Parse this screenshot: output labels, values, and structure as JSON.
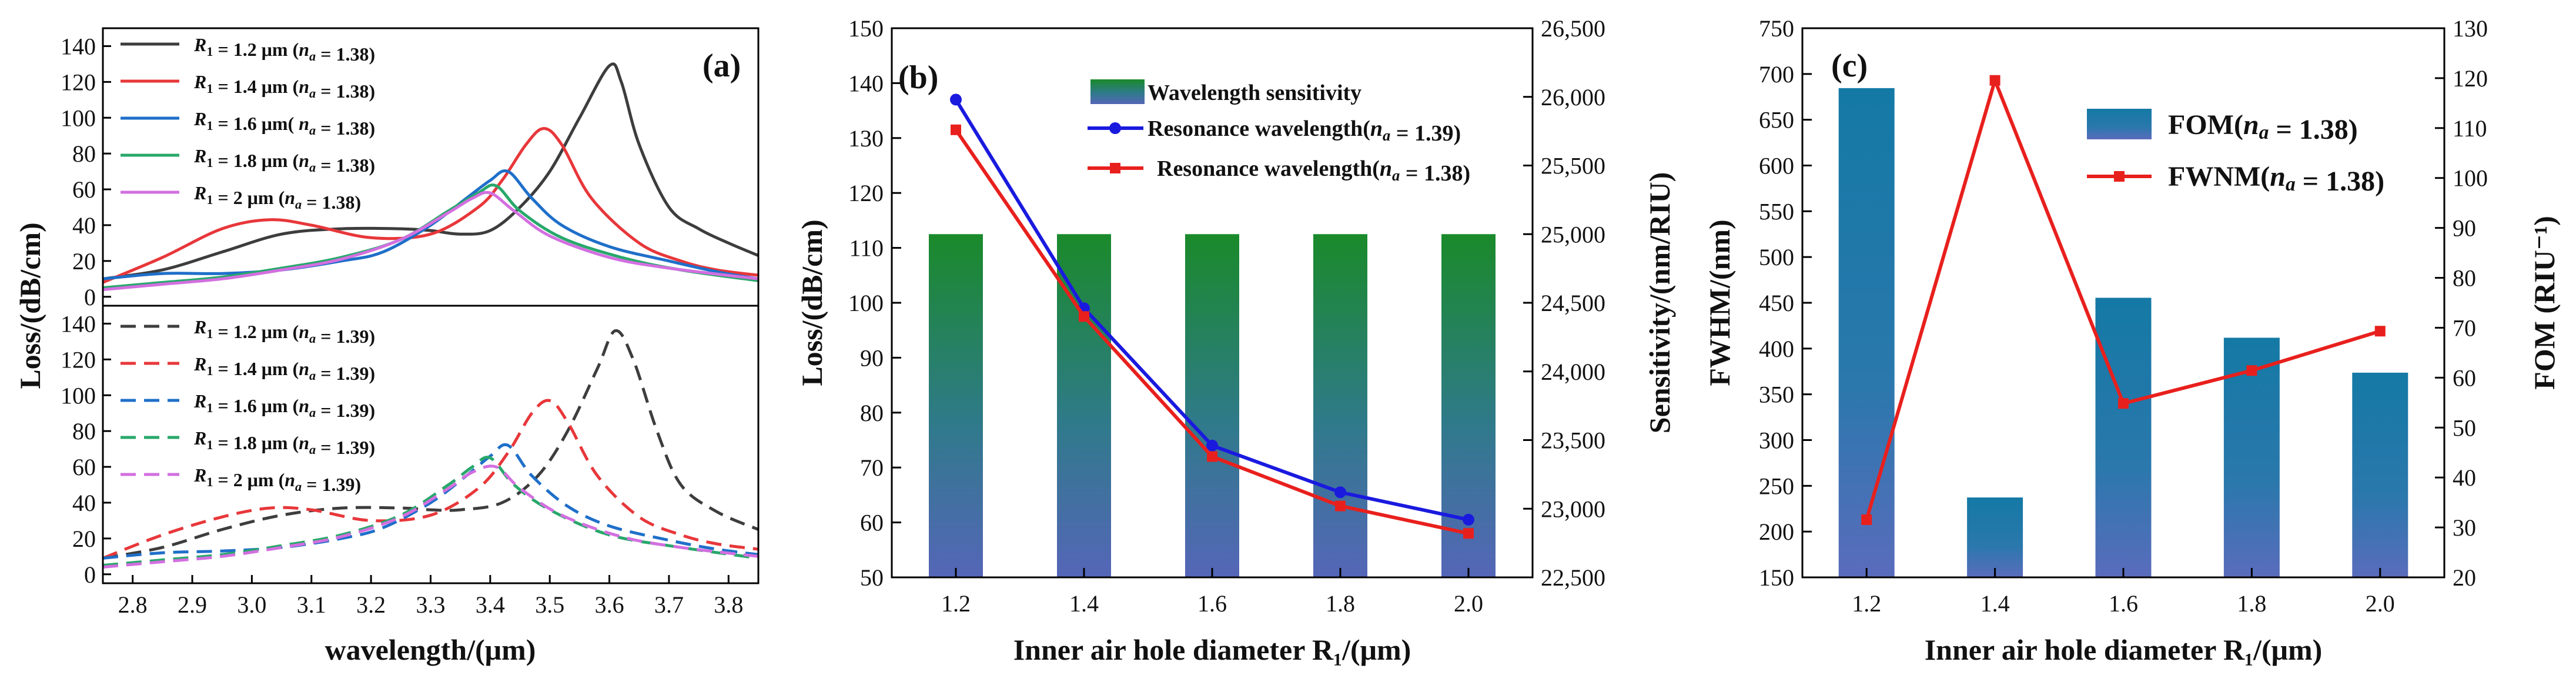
{
  "chart_data": [
    {
      "panel": "(a)",
      "type": "line",
      "xlabel": "wavelength/(μm)",
      "ylabel": "Loss/(dB/cm)",
      "xlim": [
        2.75,
        3.85
      ],
      "xticks": [
        "2.8",
        "2.9",
        "3.0",
        "3.1",
        "3.2",
        "3.3",
        "3.4",
        "3.5",
        "3.6",
        "3.7",
        "3.8"
      ],
      "top": {
        "ylim": [
          -5,
          150
        ],
        "yticks": [
          "0",
          "20",
          "40",
          "60",
          "80",
          "100",
          "120",
          "140"
        ],
        "series": [
          {
            "legend": "R₁ = 1.2 μm (nₐ = 1.38)",
            "color": "#3d3d3d",
            "style": "solid",
            "x": [
              2.75,
              2.85,
              2.95,
              3.05,
              3.15,
              3.25,
              3.3,
              3.35,
              3.4,
              3.45,
              3.5,
              3.55,
              3.6,
              3.62,
              3.65,
              3.7,
              3.75,
              3.8,
              3.85
            ],
            "y": [
              10,
              15,
              25,
              35,
              38,
              38,
              37,
              35,
              37,
              50,
              70,
              100,
              129,
              120,
              85,
              50,
              38,
              30,
              23
            ]
          },
          {
            "legend": "R₁ = 1.4 μm (nₐ = 1.38)",
            "color": "#e8373a",
            "style": "solid",
            "x": [
              2.75,
              2.85,
              2.95,
              3.03,
              3.1,
              3.2,
              3.3,
              3.38,
              3.42,
              3.46,
              3.49,
              3.52,
              3.57,
              3.65,
              3.72,
              3.78,
              3.85
            ],
            "y": [
              8,
              22,
              38,
              43,
              40,
              33,
              35,
              50,
              65,
              85,
              94,
              85,
              55,
              30,
              20,
              15,
              12
            ]
          },
          {
            "legend": "R₁ = 1.6 μm( nₐ = 1.38)",
            "color": "#1f6fc9",
            "style": "solid",
            "x": [
              2.75,
              2.85,
              2.95,
              3.05,
              3.15,
              3.22,
              3.3,
              3.36,
              3.4,
              3.43,
              3.47,
              3.52,
              3.6,
              3.7,
              3.78,
              3.85
            ],
            "y": [
              10,
              13,
              13,
              15,
              20,
              25,
              40,
              55,
              65,
              70,
              55,
              40,
              28,
              20,
              14,
              10
            ]
          },
          {
            "legend": "R₁ = 1.8 μm (nₐ = 1.38)",
            "color": "#28a86b",
            "style": "solid",
            "x": [
              2.75,
              2.85,
              2.95,
              3.05,
              3.15,
              3.25,
              3.33,
              3.38,
              3.41,
              3.45,
              3.52,
              3.62,
              3.72,
              3.85
            ],
            "y": [
              5,
              8,
              11,
              16,
              22,
              32,
              48,
              58,
              62,
              48,
              33,
              22,
              15,
              9
            ]
          },
          {
            "legend": "R₁ = 2 μm (nₐ = 1.38)",
            "color": "#d36fe0",
            "style": "solid",
            "x": [
              2.75,
              2.85,
              2.95,
              3.05,
              3.15,
              3.25,
              3.33,
              3.37,
              3.4,
              3.44,
              3.5,
              3.6,
              3.7,
              3.85
            ],
            "y": [
              4,
              7,
              10,
              15,
              21,
              32,
              47,
              55,
              58,
              48,
              34,
              22,
              16,
              10
            ]
          }
        ]
      },
      "bottom": {
        "ylim": [
          -5,
          150
        ],
        "yticks": [
          "0",
          "20",
          "40",
          "60",
          "80",
          "100",
          "120",
          "140"
        ],
        "series": [
          {
            "legend": "R₁ = 1.2 μm (nₐ = 1.39)",
            "color": "#3d3d3d",
            "style": "dashed",
            "x": [
              2.75,
              2.85,
              2.95,
              3.05,
              3.15,
              3.25,
              3.3,
              3.35,
              3.42,
              3.48,
              3.53,
              3.58,
              3.61,
              3.64,
              3.68,
              3.72,
              3.78,
              3.85
            ],
            "y": [
              9,
              15,
              25,
              33,
              37,
              37,
              36,
              36,
              40,
              55,
              80,
              115,
              136,
              120,
              80,
              50,
              35,
              25
            ]
          },
          {
            "legend": "R₁ = 1.4 μm (nₐ = 1.39)",
            "color": "#e8373a",
            "style": "dashed",
            "x": [
              2.75,
              2.85,
              2.95,
              3.03,
              3.1,
              3.2,
              3.3,
              3.38,
              3.43,
              3.47,
              3.5,
              3.53,
              3.58,
              3.65,
              3.72,
              3.78,
              3.85
            ],
            "y": [
              9,
              22,
              32,
              37,
              36,
              30,
              33,
              48,
              68,
              90,
              97,
              85,
              55,
              32,
              22,
              17,
              14
            ]
          },
          {
            "legend": "R₁ = 1.6 μm (nₐ = 1.39)",
            "color": "#1f6fc9",
            "style": "dashed",
            "x": [
              2.75,
              2.85,
              2.95,
              3.05,
              3.15,
              3.22,
              3.3,
              3.36,
              3.4,
              3.43,
              3.47,
              3.53,
              3.6,
              3.7,
              3.78,
              3.85
            ],
            "y": [
              9,
              12,
              13,
              15,
              20,
              26,
              40,
              55,
              66,
              72,
              55,
              38,
              27,
              19,
              14,
              11
            ]
          },
          {
            "legend": "R₁ = 1.8 μm (nₐ = 1.39)",
            "color": "#28a86b",
            "style": "dashed",
            "x": [
              2.75,
              2.85,
              2.95,
              3.05,
              3.15,
              3.25,
              3.33,
              3.37,
              3.4,
              3.44,
              3.5,
              3.6,
              3.72,
              3.85
            ],
            "y": [
              5,
              8,
              11,
              16,
              22,
              33,
              50,
              60,
              65,
              50,
              36,
              22,
              15,
              9
            ]
          },
          {
            "legend": "R₁ = 2 μm (nₐ = 1.39)",
            "color": "#d36fe0",
            "style": "dashed",
            "x": [
              2.75,
              2.85,
              2.95,
              3.05,
              3.15,
              3.25,
              3.33,
              3.37,
              3.41,
              3.45,
              3.52,
              3.62,
              3.72,
              3.85
            ],
            "y": [
              4,
              7,
              10,
              15,
              21,
              32,
              48,
              57,
              60,
              48,
              33,
              21,
              15,
              10
            ]
          }
        ]
      }
    },
    {
      "panel": "(b)",
      "type": "bar+line",
      "xlabel": "Inner air hole diameter R₁/(μm)",
      "ylabel": "Loss/(dB/cm)",
      "ylabel_right": "Sensitivity/(nm/RIU)",
      "categories": [
        "1.2",
        "1.4",
        "1.6",
        "1.8",
        "2.0"
      ],
      "ylim": [
        50,
        150
      ],
      "yticks": [
        "50",
        "60",
        "70",
        "80",
        "90",
        "100",
        "110",
        "120",
        "130",
        "140",
        "150"
      ],
      "ylim_right": [
        22500,
        26500
      ],
      "yticks_right": [
        "22,500",
        "23,000",
        "23,500",
        "24,000",
        "24,500",
        "25,000",
        "25,500",
        "26,000",
        "26,500"
      ],
      "bars": {
        "name": "Wavelength  sensitivity",
        "values": [
          25000,
          25000,
          25000,
          25000,
          25000
        ]
      },
      "series": [
        {
          "name": "Resonance wavelength(nₐ = 1.39)",
          "color": "#1a1adf",
          "marker": "circle",
          "values": [
            137,
            99,
            74,
            65.5,
            60.5
          ]
        },
        {
          "name": "Resonance wavelength(nₐ = 1.38)",
          "color": "#e8201d",
          "marker": "square",
          "values": [
            131.5,
            97.5,
            72,
            63,
            58
          ]
        }
      ]
    },
    {
      "panel": "(c)",
      "type": "bar+line",
      "xlabel": "Inner air hole diameter R₁/(μm)",
      "ylabel": "FWHM/(nm)",
      "ylabel_right": "FOM (RIU⁻¹)",
      "categories": [
        "1.2",
        "1.4",
        "1.6",
        "1.8",
        "2.0"
      ],
      "ylim": [
        150,
        750
      ],
      "yticks": [
        "150",
        "200",
        "250",
        "300",
        "350",
        "400",
        "450",
        "500",
        "550",
        "600",
        "650",
        "700",
        "750"
      ],
      "ylim_right": [
        20,
        130
      ],
      "yticks_right": [
        "20",
        "30",
        "40",
        "50",
        "60",
        "70",
        "80",
        "90",
        "100",
        "110",
        "120",
        "130"
      ],
      "bars": {
        "name": "FOM(nₐ = 1.38)",
        "values": [
          118,
          36,
          76,
          68,
          61
        ]
      },
      "series": [
        {
          "name": "FWNM(nₐ = 1.38)",
          "color": "#e8201d",
          "marker": "square",
          "values": [
            213,
            693,
            340,
            376,
            419
          ]
        }
      ]
    }
  ]
}
